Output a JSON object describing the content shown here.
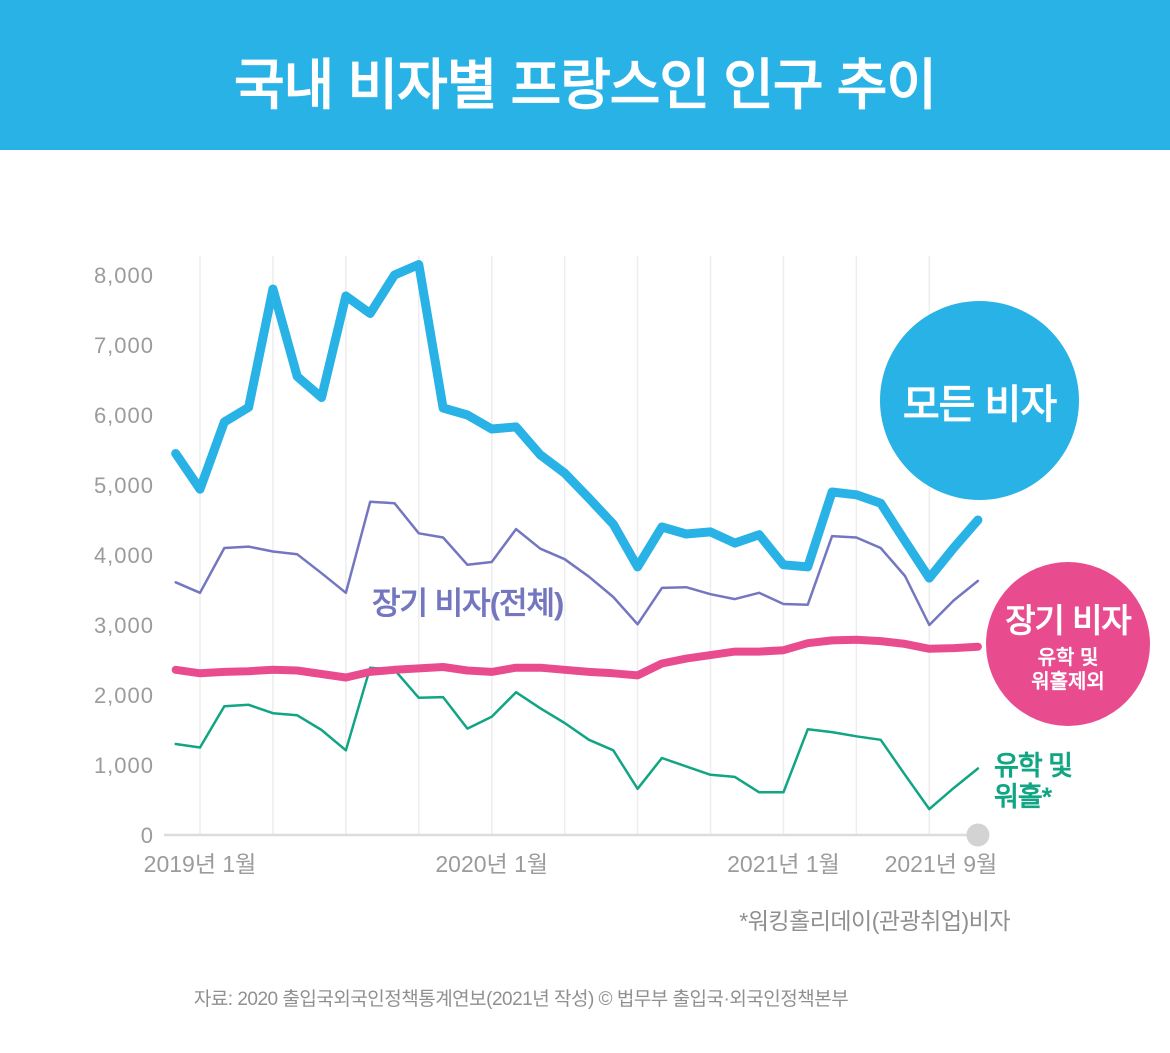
{
  "header": {
    "title": "국내 비자별 프랑스인 인구 추이"
  },
  "colors": {
    "cyan": "#29B2E6",
    "pink": "#E84C8F",
    "purple": "#7477BF",
    "teal": "#11A584",
    "tick_text": "#9B9B9B",
    "gridline": "#EDEDED",
    "axis": "#DCDCDC",
    "end_dot": "#D3D3D3"
  },
  "chart_data": {
    "type": "line",
    "title": "국내 비자별 프랑스인 인구 추이",
    "xlabel": "",
    "ylabel": "",
    "ylim": [
      0,
      8000
    ],
    "yticks": [
      0,
      1000,
      2000,
      3000,
      4000,
      5000,
      6000,
      7000,
      8000
    ],
    "grid": "vertical-quarterly",
    "legend_position": "right-overlay",
    "x": [
      "2018-12",
      "2019-01",
      "2019-02",
      "2019-03",
      "2019-04",
      "2019-05",
      "2019-06",
      "2019-07",
      "2019-08",
      "2019-09",
      "2019-10",
      "2019-11",
      "2019-12",
      "2020-01",
      "2020-02",
      "2020-03",
      "2020-04",
      "2020-05",
      "2020-06",
      "2020-07",
      "2020-08",
      "2020-09",
      "2020-10",
      "2020-11",
      "2020-12",
      "2021-01",
      "2021-02",
      "2021-03",
      "2021-04",
      "2021-05",
      "2021-06",
      "2021-07",
      "2021-08",
      "2021-09"
    ],
    "xticks": [
      {
        "label": "2019년 1월",
        "month": "2019-01",
        "shift": 0
      },
      {
        "label": "2020년 1월",
        "month": "2020-01",
        "shift": 0
      },
      {
        "label": "2021년 1월",
        "month": "2021-01",
        "shift": 0
      },
      {
        "label": "2021년 9월",
        "month": "2021-09",
        "shift": -37
      }
    ],
    "series": [
      {
        "key": "long-term-total",
        "name": "장기 비자(전체)",
        "color": "#7477BF",
        "width": 2.5,
        "values": [
          3610,
          3460,
          4100,
          4120,
          4050,
          4010,
          3740,
          3460,
          4760,
          4740,
          4310,
          4250,
          3860,
          3900,
          4370,
          4090,
          3940,
          3690,
          3400,
          3010,
          3530,
          3540,
          3440,
          3370,
          3460,
          3300,
          3290,
          4270,
          4250,
          4100,
          3700,
          3000,
          3350,
          3630
        ]
      },
      {
        "key": "study-working-holiday",
        "name": "유학 및 워홀",
        "color": "#11A584",
        "width": 2.5,
        "values": [
          1300,
          1250,
          1840,
          1860,
          1740,
          1710,
          1500,
          1210,
          2390,
          2360,
          1960,
          1970,
          1520,
          1690,
          2040,
          1810,
          1600,
          1360,
          1210,
          660,
          1100,
          980,
          860,
          830,
          610,
          610,
          1510,
          1470,
          1410,
          1360,
          860,
          370,
          670,
          950
        ]
      },
      {
        "key": "long-term-excl-study-wh",
        "name": "장기 비자(유학 및 워홀제외)",
        "color": "#E84C8F",
        "width": 8,
        "values": [
          2360,
          2310,
          2330,
          2340,
          2360,
          2350,
          2300,
          2250,
          2330,
          2360,
          2380,
          2400,
          2350,
          2330,
          2390,
          2390,
          2360,
          2330,
          2310,
          2280,
          2450,
          2520,
          2570,
          2620,
          2620,
          2640,
          2740,
          2780,
          2790,
          2770,
          2730,
          2660,
          2670,
          2690
        ]
      },
      {
        "key": "all-visas",
        "name": "모든 비자",
        "color": "#29B2E6",
        "width": 9,
        "values": [
          5450,
          4940,
          5900,
          6110,
          7800,
          6550,
          6250,
          7700,
          7450,
          8000,
          8150,
          6100,
          6000,
          5800,
          5830,
          5430,
          5170,
          4810,
          4440,
          3830,
          4400,
          4300,
          4330,
          4170,
          4290,
          3860,
          3830,
          4900,
          4860,
          4740,
          4200,
          3670,
          4100,
          4500
        ]
      }
    ],
    "end_marker": {
      "month": "2021-09",
      "value": 0
    }
  },
  "legend": {
    "all_visas": {
      "label": "모든 비자"
    },
    "long_term_excl": {
      "label": "장기 비자",
      "sub_line1": "유학 및",
      "sub_line2": "워홀제외"
    },
    "long_term_total": {
      "label": "장기 비자(전체)"
    },
    "study_wh": {
      "line1": "유학 및",
      "line2": "워홀*"
    }
  },
  "footnote": "*워킹홀리데이(관광취업)비자",
  "source": "자료: 2020 출입국외국인정책통계연보(2021년 작성)  © 법무부 출입국·외국인정책본부"
}
